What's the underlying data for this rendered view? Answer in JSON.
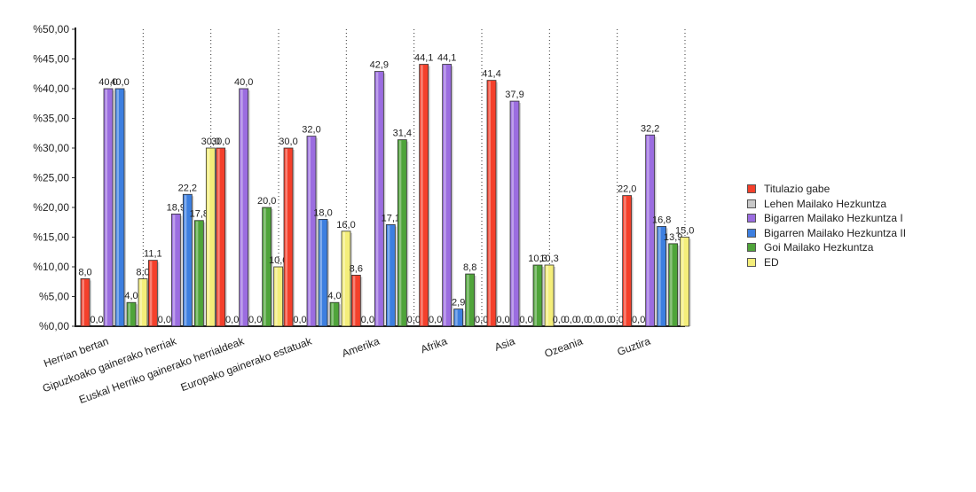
{
  "chart_data": {
    "type": "bar",
    "title": "",
    "xlabel": "",
    "ylabel": "",
    "ylim": [
      0,
      50
    ],
    "y_ticks": [
      "%0,00",
      "%5,00",
      "%10,00",
      "%15,00",
      "%20,00",
      "%25,00",
      "%30,00",
      "%35,00",
      "%40,00",
      "%45,00",
      "%50,00"
    ],
    "grid": "vertical dotted separators between categories",
    "legend_position": "right",
    "categories": [
      "Herrian bertan",
      "Gipuzkoako gainerako herriak",
      "Euskal Herriko gainerako herrialdeak",
      "Europako gainerako estatuak",
      "Amerika",
      "Afrika",
      "Asia",
      "Ozeania",
      "Guztira"
    ],
    "series": [
      {
        "name": "Titulazio gabe",
        "color": "#f4402b",
        "values": [
          8.0,
          11.1,
          30.0,
          30.0,
          8.6,
          44.1,
          41.4,
          0.0,
          22.0
        ],
        "labels": [
          "8,0",
          "11,1",
          "30,0",
          "30,0",
          "8,6",
          "44,1",
          "41,4",
          "0,0",
          "22,0"
        ]
      },
      {
        "name": "Lehen Mailako Hezkuntza",
        "color": "#c8c8c8",
        "values": [
          0.0,
          0.0,
          0.0,
          0.0,
          0.0,
          0.0,
          0.0,
          0.0,
          0.0
        ],
        "labels": [
          "0,0",
          "0,0",
          "0,0",
          "0,0",
          "0,0",
          "0,0",
          "0,0",
          "0,0",
          "0,0"
        ]
      },
      {
        "name": "Bigarren Mailako Hezkuntza I",
        "color": "#9b6de0",
        "values": [
          40.0,
          18.9,
          40.0,
          32.0,
          42.9,
          44.1,
          37.9,
          0.0,
          32.2
        ],
        "labels": [
          "40,0",
          "18,9",
          "40,0",
          "32,0",
          "42,9",
          "44,1",
          "37,9",
          "0,0",
          "32,2"
        ]
      },
      {
        "name": "Bigarren Mailako Hezkuntza II",
        "color": "#3d7fe0",
        "values": [
          40.0,
          22.2,
          0.0,
          18.0,
          17.1,
          2.9,
          0.0,
          0.0,
          16.8
        ],
        "labels": [
          "40,0",
          "22,2",
          "0,0",
          "18,0",
          "17,1",
          "2,9",
          "0,0",
          "0,0",
          "16,8"
        ]
      },
      {
        "name": "Goi Mailako Hezkuntza",
        "color": "#4fa43a",
        "values": [
          4.0,
          17.8,
          20.0,
          4.0,
          31.4,
          8.8,
          10.3,
          0.0,
          13.9
        ],
        "labels": [
          "4,0",
          "17,8",
          "20,0",
          "4,0",
          "31,4",
          "8,8",
          "10,3",
          "0,0",
          "13,9"
        ]
      },
      {
        "name": "ED",
        "color": "#f4ee7a",
        "values": [
          8.0,
          30.0,
          10.0,
          16.0,
          0.0,
          0.0,
          10.3,
          0.0,
          15.0
        ],
        "labels": [
          "8,0",
          "30,0",
          "10,0",
          "16,0",
          "0,0",
          "0,0",
          "10,3",
          "0,0",
          "15,0"
        ]
      }
    ]
  }
}
